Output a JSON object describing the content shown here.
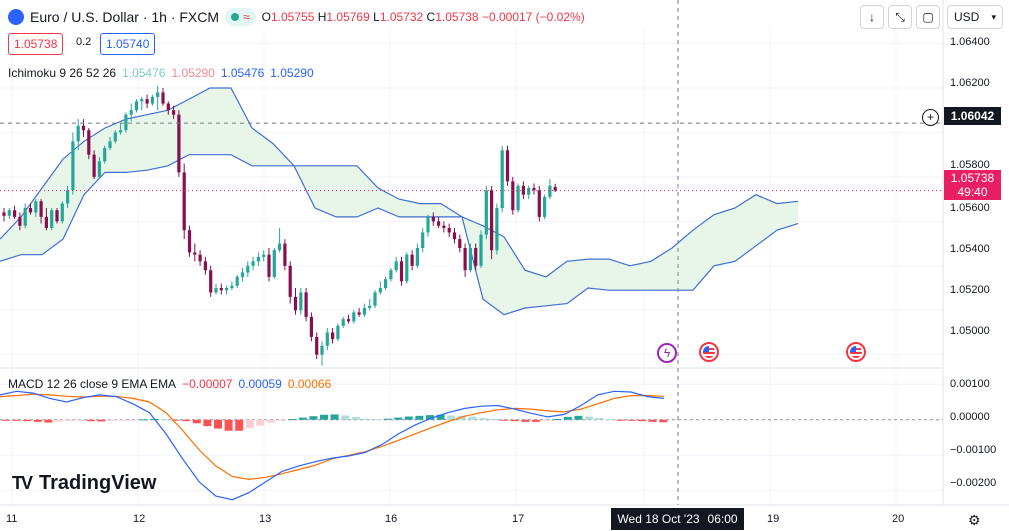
{
  "header": {
    "symbol": "Euro / U.S. Dollar · 1h · FXCM",
    "ohlc": [
      {
        "k": "O",
        "v": "1.05755"
      },
      {
        "k": "H",
        "v": "1.05769"
      },
      {
        "k": "L",
        "v": "1.05732"
      },
      {
        "k": "C",
        "v": "1.05738"
      }
    ],
    "change": "−0.00017 (−0.02%)",
    "status_icon": "wave-icon"
  },
  "trade": {
    "sell": "1.05738",
    "spread": "0.2",
    "buy": "1.05740"
  },
  "ichimoku": {
    "label": "Ichimoku 9 26 52 26",
    "values": [
      "1.05476",
      "1.05290",
      "1.05476",
      "1.05290"
    ],
    "colors": [
      "#22ab94",
      "#f23645",
      "#2962ff",
      "#2962ff"
    ]
  },
  "macd_legend": {
    "label": "MACD 12 26 close 9 EMA EMA",
    "values": [
      "−0.00007",
      "0.00059",
      "0.00066"
    ],
    "colors": [
      "#f23645",
      "#2962ff",
      "#ff6d00"
    ]
  },
  "toolbar": {
    "currency": "USD",
    "buttons": [
      "download-icon",
      "collapse-icon",
      "fullscreen-icon"
    ]
  },
  "price_axis": [
    "1.06400",
    "1.06200",
    "1.05800",
    "1.05600",
    "1.05400",
    "1.05200",
    "1.05000"
  ],
  "macd_axis": [
    "0.00100",
    "0.00000",
    "−0.00100",
    "−0.00200"
  ],
  "time_axis": [
    "11",
    "12",
    "13",
    "16",
    "17",
    "19",
    "20"
  ],
  "crosshair": {
    "date": "Wed 18 Oct '23",
    "time": "06:00",
    "price": "1.06042"
  },
  "last_price": {
    "value": "1.05738",
    "countdown": "49:40"
  },
  "branding": {
    "name": "TradingView"
  },
  "colors": {
    "up": "#26a69a",
    "down": "#880e4f",
    "cloud_bull": "#e8f5e9",
    "cloud_bear": "#fce4ec",
    "span": "#3f6fd1",
    "macd": "#2962ff",
    "signal": "#ff6d00"
  },
  "chart_data": {
    "type": "candlestick",
    "ohlc": [
      [
        1.0564,
        1.0566,
        1.056,
        1.05625
      ],
      [
        1.05625,
        1.0566,
        1.0561,
        1.0565
      ],
      [
        1.0565,
        1.0567,
        1.0561,
        1.0562
      ],
      [
        1.0562,
        1.0564,
        1.0556,
        1.0558
      ],
      [
        1.0558,
        1.0568,
        1.0557,
        1.0566
      ],
      [
        1.0566,
        1.0568,
        1.0563,
        1.0564
      ],
      [
        1.0564,
        1.057,
        1.0562,
        1.0569
      ],
      [
        1.0569,
        1.057,
        1.0559,
        1.0562
      ],
      [
        1.0562,
        1.0566,
        1.0556,
        1.0557
      ],
      [
        1.0557,
        1.0566,
        1.0556,
        1.0565
      ],
      [
        1.0565,
        1.0566,
        1.0559,
        1.056
      ],
      [
        1.056,
        1.0569,
        1.0559,
        1.0568
      ],
      [
        1.0568,
        1.0576,
        1.0566,
        1.0574
      ],
      [
        1.0574,
        1.06,
        1.0572,
        1.0596
      ],
      [
        1.0596,
        1.0606,
        1.0592,
        1.0603
      ],
      [
        1.0603,
        1.0606,
        1.0598,
        1.0601
      ],
      [
        1.0601,
        1.0602,
        1.0588,
        1.059
      ],
      [
        1.059,
        1.0592,
        1.0579,
        1.058
      ],
      [
        1.058,
        1.0589,
        1.0579,
        1.0587
      ],
      [
        1.0587,
        1.0594,
        1.0586,
        1.0593
      ],
      [
        1.0593,
        1.0598,
        1.0592,
        1.0596
      ],
      [
        1.0596,
        1.0601,
        1.0595,
        1.06
      ],
      [
        1.06,
        1.0604,
        1.0599,
        1.0601
      ],
      [
        1.0601,
        1.0609,
        1.06,
        1.0608
      ],
      [
        1.0608,
        1.0613,
        1.0605,
        1.061
      ],
      [
        1.061,
        1.0615,
        1.0609,
        1.0614
      ],
      [
        1.0614,
        1.0616,
        1.061,
        1.0615
      ],
      [
        1.0615,
        1.0617,
        1.0611,
        1.0613
      ],
      [
        1.0613,
        1.0617,
        1.0612,
        1.0616
      ],
      [
        1.0616,
        1.0621,
        1.061,
        1.0618
      ],
      [
        1.0618,
        1.062,
        1.0612,
        1.0613
      ],
      [
        1.0613,
        1.0614,
        1.0608,
        1.061
      ],
      [
        1.061,
        1.0612,
        1.0606,
        1.0608
      ],
      [
        1.0608,
        1.061,
        1.058,
        1.0582
      ],
      [
        1.0582,
        1.0586,
        1.0552,
        1.0556
      ],
      [
        1.0556,
        1.0558,
        1.0544,
        1.0546
      ],
      [
        1.0546,
        1.055,
        1.0542,
        1.0545
      ],
      [
        1.0545,
        1.0547,
        1.054,
        1.0542
      ],
      [
        1.0542,
        1.0544,
        1.0536,
        1.0538
      ],
      [
        1.0538,
        1.054,
        1.0526,
        1.0528
      ],
      [
        1.0528,
        1.0532,
        1.0527,
        1.053
      ],
      [
        1.053,
        1.0532,
        1.0527,
        1.0529
      ],
      [
        1.0529,
        1.0531,
        1.0527,
        1.053
      ],
      [
        1.053,
        1.0533,
        1.0529,
        1.0531
      ],
      [
        1.0531,
        1.0536,
        1.053,
        1.0535
      ],
      [
        1.0535,
        1.0539,
        1.0533,
        1.0537
      ],
      [
        1.0537,
        1.0542,
        1.0535,
        1.054
      ],
      [
        1.054,
        1.0544,
        1.0538,
        1.0542
      ],
      [
        1.0542,
        1.0546,
        1.054,
        1.0544
      ],
      [
        1.0544,
        1.0547,
        1.0542,
        1.0545
      ],
      [
        1.0545,
        1.0548,
        1.0533,
        1.0535
      ],
      [
        1.0535,
        1.0548,
        1.0534,
        1.0547
      ],
      [
        1.0547,
        1.0557,
        1.0546,
        1.055
      ],
      [
        1.055,
        1.0552,
        1.0538,
        1.054
      ],
      [
        1.054,
        1.0542,
        1.0523,
        1.0526
      ],
      [
        1.0526,
        1.053,
        1.0518,
        1.052
      ],
      [
        1.052,
        1.053,
        1.0518,
        1.0528
      ],
      [
        1.0528,
        1.053,
        1.0515,
        1.0517
      ],
      [
        1.0517,
        1.0519,
        1.0506,
        1.0508
      ],
      [
        1.0508,
        1.051,
        1.0498,
        1.05
      ],
      [
        1.05,
        1.0506,
        1.0495,
        1.0504
      ],
      [
        1.0504,
        1.0512,
        1.0502,
        1.051
      ],
      [
        1.051,
        1.0512,
        1.0505,
        1.0507
      ],
      [
        1.0507,
        1.0514,
        1.0506,
        1.0513
      ],
      [
        1.0513,
        1.0517,
        1.0512,
        1.0516
      ],
      [
        1.0516,
        1.0518,
        1.0514,
        1.0515
      ],
      [
        1.0515,
        1.052,
        1.0514,
        1.0519
      ],
      [
        1.0519,
        1.0521,
        1.0517,
        1.0518
      ],
      [
        1.0518,
        1.0523,
        1.0517,
        1.0521
      ],
      [
        1.0521,
        1.0525,
        1.052,
        1.0522
      ],
      [
        1.0522,
        1.0529,
        1.0521,
        1.0528
      ],
      [
        1.0528,
        1.0533,
        1.0527,
        1.053
      ],
      [
        1.053,
        1.0535,
        1.0529,
        1.0534
      ],
      [
        1.0534,
        1.0539,
        1.0533,
        1.0538
      ],
      [
        1.0538,
        1.0544,
        1.0537,
        1.0542
      ],
      [
        1.0542,
        1.0544,
        1.0531,
        1.0533
      ],
      [
        1.0533,
        1.0546,
        1.0532,
        1.0545
      ],
      [
        1.0545,
        1.0547,
        1.0538,
        1.054
      ],
      [
        1.054,
        1.055,
        1.0539,
        1.0548
      ],
      [
        1.0548,
        1.0557,
        1.0546,
        1.0555
      ],
      [
        1.0555,
        1.0563,
        1.0553,
        1.0562
      ],
      [
        1.0562,
        1.0564,
        1.0558,
        1.056
      ],
      [
        1.056,
        1.0562,
        1.0557,
        1.0558
      ],
      [
        1.0558,
        1.056,
        1.0555,
        1.0557
      ],
      [
        1.0557,
        1.0559,
        1.0553,
        1.0555
      ],
      [
        1.0555,
        1.0557,
        1.055,
        1.0552
      ],
      [
        1.0552,
        1.0554,
        1.0546,
        1.0548
      ],
      [
        1.0548,
        1.055,
        1.0535,
        1.0538
      ],
      [
        1.0538,
        1.055,
        1.0537,
        1.0548
      ],
      [
        1.0548,
        1.055,
        1.0538,
        1.054
      ],
      [
        1.054,
        1.0556,
        1.0539,
        1.0554
      ],
      [
        1.0554,
        1.0576,
        1.0552,
        1.0574
      ],
      [
        1.0574,
        1.0576,
        1.0543,
        1.0547
      ],
      [
        1.0547,
        1.0568,
        1.0545,
        1.0566
      ],
      [
        1.0566,
        1.0594,
        1.0564,
        1.0592
      ],
      [
        1.0592,
        1.0594,
        1.0576,
        1.0578
      ],
      [
        1.0578,
        1.058,
        1.0563,
        1.0565
      ],
      [
        1.0565,
        1.0577,
        1.0564,
        1.0576
      ],
      [
        1.0576,
        1.0578,
        1.057,
        1.0572
      ],
      [
        1.0572,
        1.0576,
        1.057,
        1.0575
      ],
      [
        1.0575,
        1.0577,
        1.0572,
        1.0574
      ],
      [
        1.0574,
        1.0576,
        1.056,
        1.0562
      ],
      [
        1.0562,
        1.0572,
        1.0561,
        1.0571
      ],
      [
        1.0571,
        1.0579,
        1.057,
        1.0576
      ],
      [
        1.05755,
        1.05769,
        1.05732,
        1.05738
      ]
    ],
    "tenkan": [
      1.057,
      1.057,
      1.058,
      1.0595,
      1.06,
      1.0605,
      1.061,
      1.061,
      1.06,
      1.056,
      1.0535,
      1.053,
      1.0525,
      1.0515,
      1.0505,
      1.0515,
      1.052,
      1.053,
      1.0535,
      1.054,
      1.055,
      1.0555,
      1.055,
      1.055,
      1.056,
      1.057,
      1.0575,
      1.0575
    ],
    "kijun": [
      1.056,
      1.056,
      1.0565,
      1.058,
      1.059,
      1.0595,
      1.06,
      1.06,
      1.0595,
      1.0575,
      1.055,
      1.0535,
      1.0525,
      1.0515,
      1.051,
      1.0515,
      1.052,
      1.053,
      1.0538,
      1.0542,
      1.0545,
      1.055,
      1.055,
      1.0555,
      1.0565,
      1.057,
      1.057,
      1.0572
    ],
    "span_a": [
      1.0552,
      1.0562,
      1.0575,
      1.0588,
      1.0596,
      1.0602,
      1.0606,
      1.0608,
      1.061,
      1.0615,
      1.062,
      1.062,
      1.0602,
      1.0595,
      1.0585,
      1.0585,
      1.0585,
      1.0585,
      1.0575,
      1.057,
      1.0568,
      1.0568,
      1.0562,
      1.0558,
      1.0553,
      1.0538,
      1.0535,
      1.0542,
      1.0543,
      1.0543,
      1.054,
      1.0542,
      1.0548,
      1.0556,
      1.0563,
      1.0566,
      1.0572,
      1.0568,
      1.0569
    ],
    "span_b": [
      1.0542,
      1.0545,
      1.0545,
      1.0552,
      1.0572,
      1.0582,
      1.0582,
      1.0583,
      1.0585,
      1.059,
      1.059,
      1.059,
      1.0585,
      1.0585,
      1.0585,
      1.0566,
      1.0562,
      1.0562,
      1.0566,
      1.0562,
      1.0562,
      1.0562,
      1.0562,
      1.0525,
      1.0518,
      1.0521,
      1.0522,
      1.0523,
      1.053,
      1.0529,
      1.0529,
      1.0529,
      1.0529,
      1.0529,
      1.054,
      1.0542,
      1.0549,
      1.0556,
      1.0559
    ],
    "macd_hist": [
      -2e-05,
      -3e-05,
      -4e-05,
      -6e-05,
      -8e-05,
      -5e-05,
      -4e-05,
      -3e-05,
      -4e-05,
      -5e-05,
      -3e-05,
      -2e-05,
      -1e-05,
      1e-05,
      2e-05,
      1e-05,
      -1e-05,
      -4e-05,
      -0.0001,
      -0.00018,
      -0.00025,
      -0.00031,
      -0.00031,
      -0.00024,
      -0.00017,
      -8e-05,
      -3e-05,
      2e-05,
      6e-05,
      0.0001,
      0.00014,
      0.00015,
      0.00012,
      8e-05,
      3e-05,
      1e-05,
      3e-05,
      6e-05,
      9e-05,
      0.00011,
      0.00013,
      0.00014,
      0.00012,
      0.00011,
      9e-05,
      5e-05,
      2e-05,
      -1e-05,
      -4e-05,
      -6e-05,
      -6e-05,
      -3e-05,
      2e-05,
      8e-05,
      0.00011,
      9e-05,
      5e-05,
      2e-05,
      -1e-05,
      -3e-05,
      -4e-05,
      -6e-05,
      -7e-05
    ],
    "macd_line": [
      0.0007,
      0.0008,
      0.00075,
      0.0006,
      0.0005,
      0.00062,
      0.0007,
      0.00065,
      0.00045,
      0.0002,
      -0.0004,
      -0.0011,
      -0.00175,
      -0.00215,
      -0.00225,
      -0.00205,
      -0.00175,
      -0.00145,
      -0.0013,
      -0.00118,
      -0.00108,
      -0.00102,
      -0.00092,
      -0.0007,
      -0.0004,
      -0.00015,
      5e-05,
      0.0002,
      0.00032,
      0.00038,
      0.0004,
      0.0003,
      0.00018,
      8e-05,
      0.00015,
      0.0004,
      0.0007,
      0.0008,
      0.00078,
      0.00065,
      0.0006
    ],
    "signal_line": [
      0.00065,
      0.00068,
      0.00072,
      0.0007,
      0.00066,
      0.00064,
      0.00066,
      0.00066,
      0.0006,
      0.0005,
      0.0002,
      -0.0003,
      -0.00085,
      -0.0013,
      -0.0016,
      -0.00168,
      -0.00162,
      -0.00152,
      -0.0014,
      -0.00128,
      -0.0011,
      -0.001,
      -0.0009,
      -0.00075,
      -0.00058,
      -0.0004,
      -0.00022,
      -5e-05,
      0.0001,
      0.0002,
      0.00028,
      0.00032,
      0.0003,
      0.00025,
      0.00022,
      0.0003,
      0.00045,
      0.0006,
      0.00068,
      0.00068,
      0.00066
    ],
    "price_range": [
      1.0494,
      1.0647
    ],
    "macd_range": [
      -0.0024,
      0.0014
    ]
  }
}
